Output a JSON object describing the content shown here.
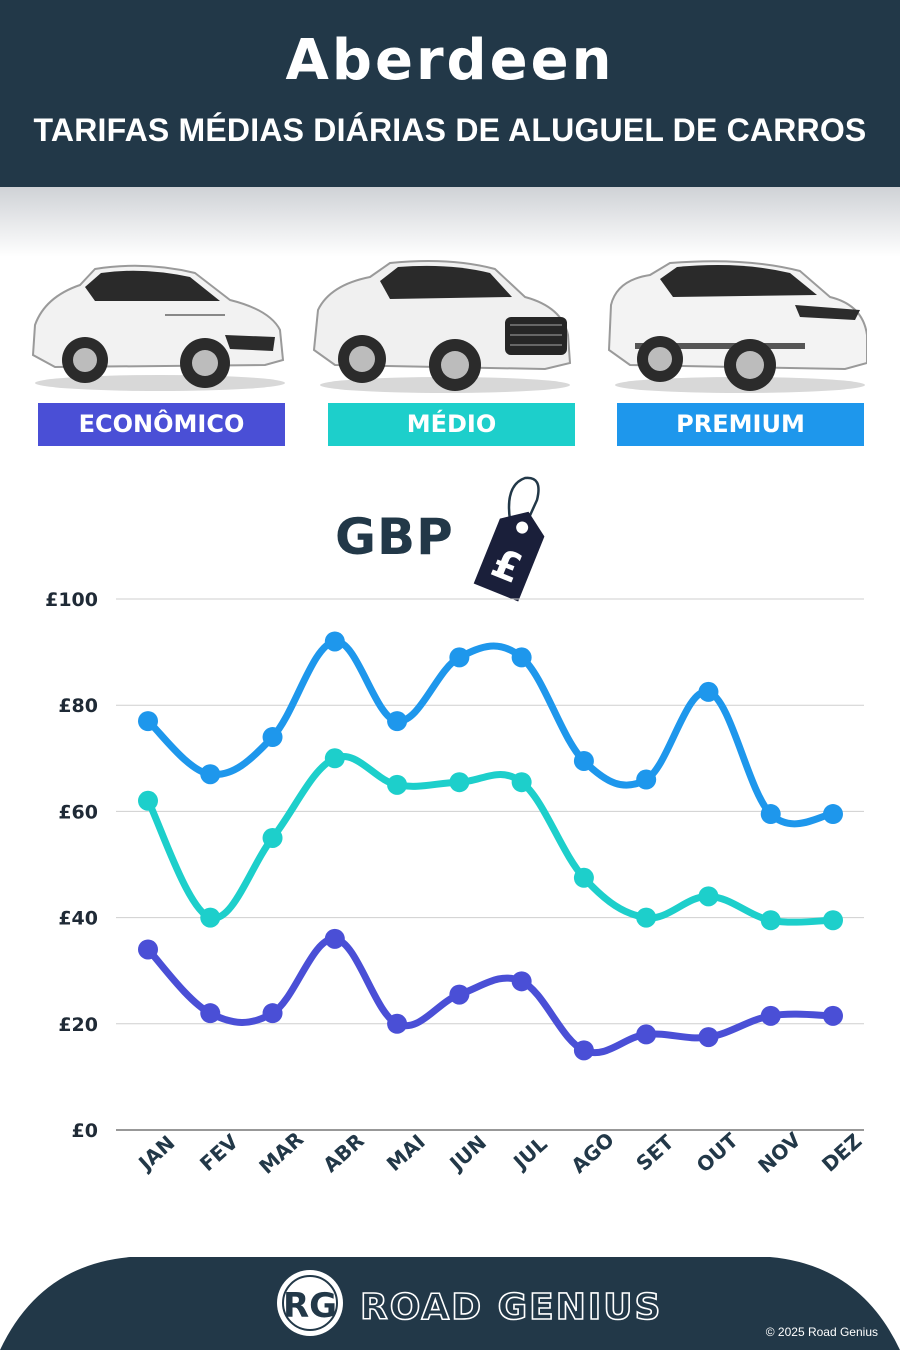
{
  "header": {
    "title": "Aberdeen",
    "subtitle": "TARIFAS MÉDIAS DIÁRIAS DE ALUGUEL DE CARROS"
  },
  "categories": [
    {
      "label": "ECONÔMICO",
      "color": "#4a4fd6"
    },
    {
      "label": "MÉDIO",
      "color": "#1dcfcb"
    },
    {
      "label": "PREMIUM",
      "color": "#1e97ec"
    }
  ],
  "currency": {
    "label": "GBP",
    "symbol": "£"
  },
  "chart_data": {
    "type": "line",
    "title": "",
    "xlabel": "",
    "ylabel": "",
    "categories": [
      "JAN",
      "FEV",
      "MAR",
      "ABR",
      "MAI",
      "JUN",
      "JUL",
      "AGO",
      "SET",
      "OUT",
      "NOV",
      "DEZ"
    ],
    "yticks": [
      "£0",
      "£20",
      "£40",
      "£60",
      "£80",
      "£100"
    ],
    "ylim": [
      0,
      100
    ],
    "grid": true,
    "smooth": true,
    "series": [
      {
        "name": "PREMIUM",
        "color": "#1e97ec",
        "values": [
          77,
          67,
          74,
          92,
          77,
          89,
          89,
          69.5,
          66,
          82.5,
          59.5,
          59.5
        ]
      },
      {
        "name": "MÉDIO",
        "color": "#1dcfcb",
        "values": [
          62,
          40,
          55,
          70,
          65,
          65.5,
          65.5,
          47.5,
          40,
          44,
          39.5,
          39.5
        ]
      },
      {
        "name": "ECONÔMICO",
        "color": "#4a4fd6",
        "values": [
          34,
          22,
          22,
          36,
          20,
          25.5,
          28,
          15,
          18,
          17.5,
          21.5,
          21.5
        ]
      }
    ]
  },
  "footer": {
    "logo_initials": "RG",
    "brand": "ROAD GENIUS",
    "copyright": "© 2025 Road Genius"
  }
}
